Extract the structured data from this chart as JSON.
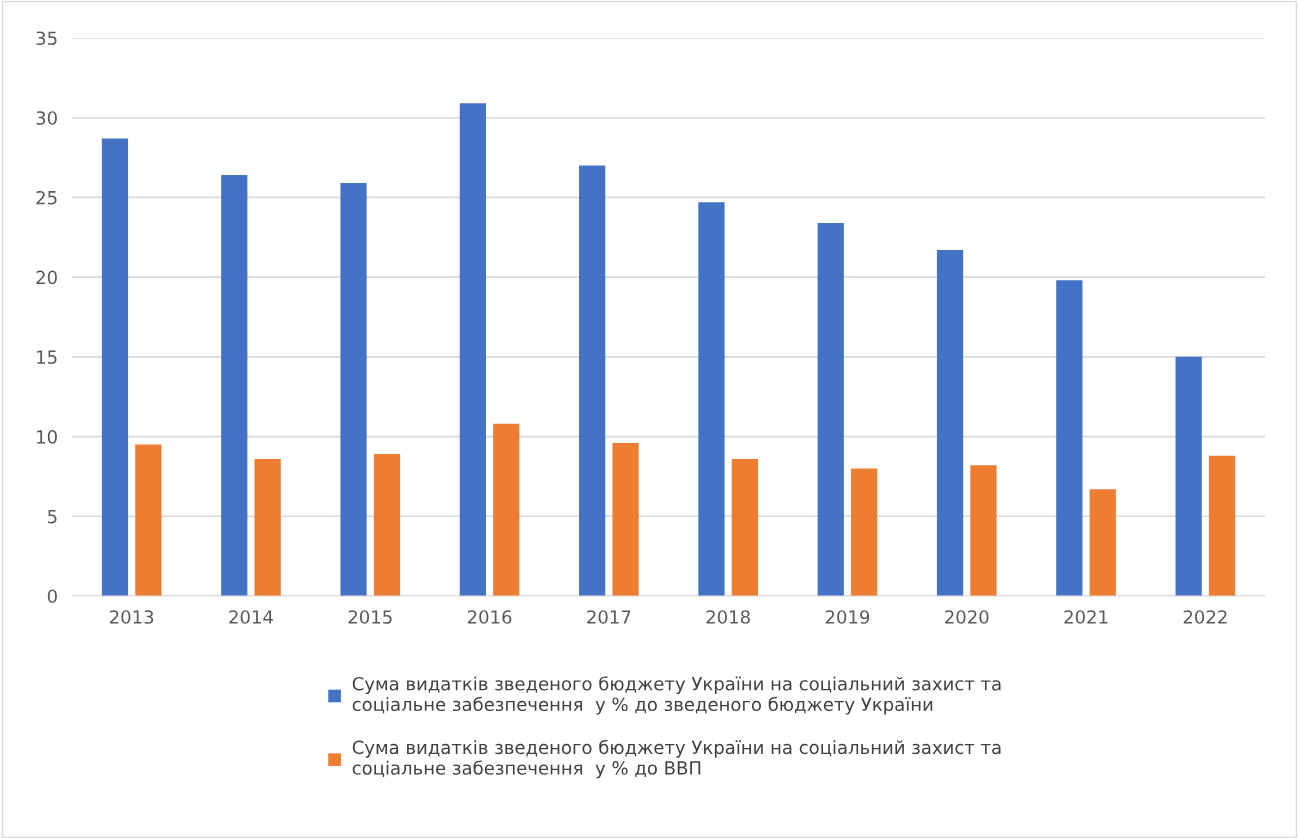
{
  "chart_data": {
    "type": "bar",
    "categories": [
      "2013",
      "2014",
      "2015",
      "2016",
      "2017",
      "2018",
      "2019",
      "2020",
      "2021",
      "2022"
    ],
    "series": [
      {
        "name": "Сума видатків зведеного бюджету України на соціальний захист та соціальне забезпечення  у % до зведеного бюджету України",
        "color": "#4472c4",
        "values": [
          28.7,
          26.4,
          25.9,
          30.9,
          27.0,
          24.7,
          23.4,
          21.7,
          19.8,
          15.0
        ]
      },
      {
        "name": "Сума видатків зведеного бюджету України на соціальний захист та соціальне забезпечення  у % до ВВП",
        "color": "#ed7d31",
        "values": [
          9.5,
          8.6,
          8.9,
          10.8,
          9.6,
          8.6,
          8.0,
          8.2,
          6.7,
          8.8
        ]
      }
    ],
    "ylim": [
      0,
      35
    ],
    "yticks": [
      0,
      5,
      10,
      15,
      20,
      25,
      30,
      35
    ],
    "grid": "y",
    "legend": "bottom"
  }
}
